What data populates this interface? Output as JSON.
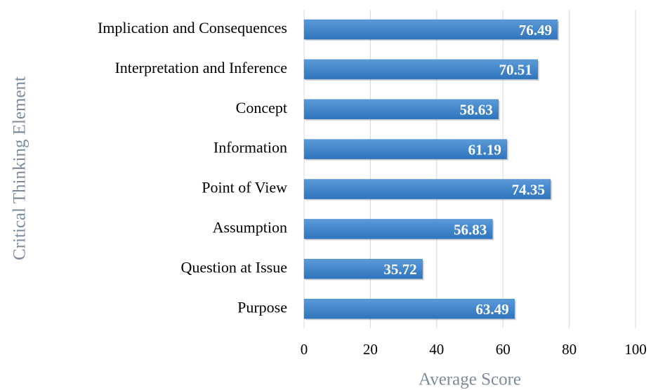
{
  "chart_data": {
    "type": "hbar",
    "categories": [
      "Implication and Consequences",
      "Interpretation and Inference",
      "Concept",
      "Information",
      "Point of View",
      "Assumption",
      "Question at Issue",
      "Purpose"
    ],
    "values": [
      76.49,
      70.51,
      58.63,
      61.19,
      74.35,
      56.83,
      35.72,
      63.49
    ],
    "color": "#3d82c7",
    "xlim": [
      0,
      100
    ],
    "xticks": [
      0,
      20,
      40,
      60,
      80,
      100
    ],
    "grid": true,
    "xlabel": "Average Score",
    "ylabel": "Critical Thinking Element"
  }
}
